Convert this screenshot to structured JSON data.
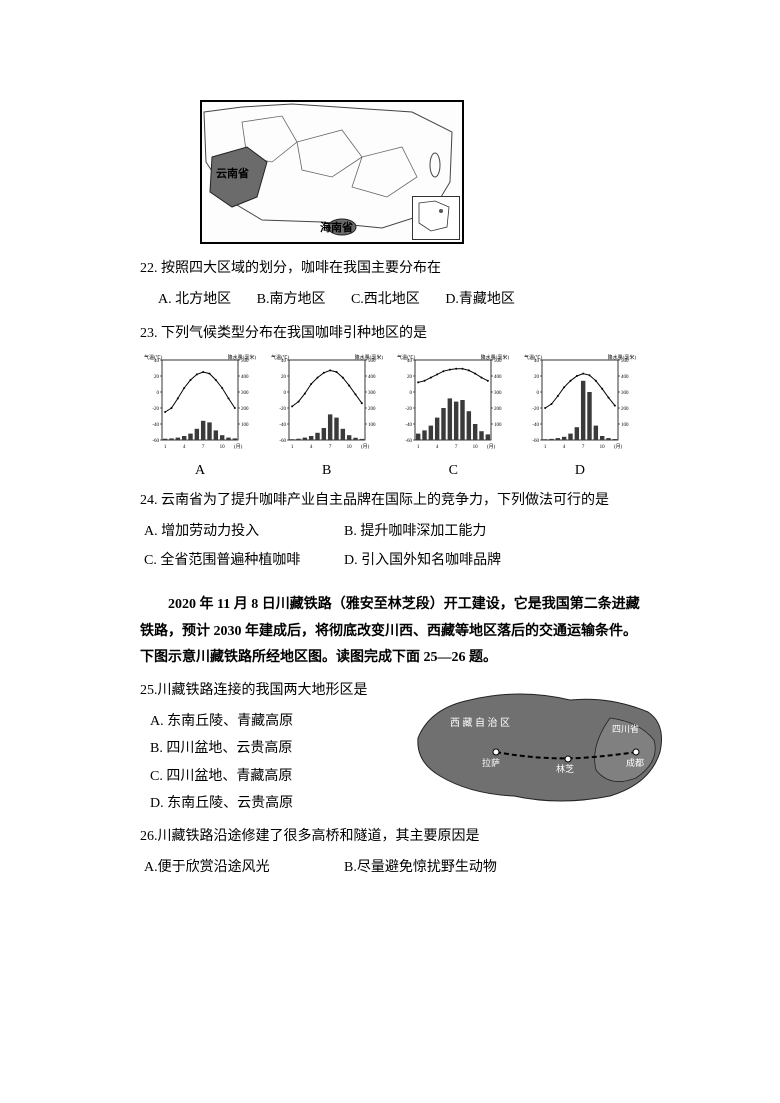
{
  "map1": {
    "labels": {
      "yunnan": "云南省",
      "hainan": "海南省"
    }
  },
  "q22": {
    "text": "22. 按照四大区域的划分，咖啡在我国主要分布在",
    "opts": {
      "a": "A.  北方地区",
      "b": "B.南方地区",
      "c": "C.西北地区",
      "d": "D.青藏地区"
    }
  },
  "q23": {
    "text": "23. 下列气候类型分布在我国咖啡引种地区的是",
    "charts": {
      "y_left_label": "气温(℃)",
      "y_right_label": "降水量(毫米)",
      "x_label": "(月)",
      "left_ticks": [
        40,
        20,
        0,
        -20,
        -40,
        -60
      ],
      "right_ticks": [
        500,
        400,
        300,
        200,
        100
      ],
      "x_ticks": [
        1,
        4,
        7,
        10
      ],
      "letters": [
        "A",
        "B",
        "C",
        "D"
      ],
      "A": {
        "temp": [
          -25,
          -20,
          -8,
          5,
          15,
          22,
          25,
          23,
          15,
          5,
          -8,
          -20
        ],
        "precip": [
          8,
          10,
          15,
          25,
          40,
          70,
          120,
          110,
          60,
          30,
          15,
          10
        ]
      },
      "B": {
        "temp": [
          -18,
          -12,
          -2,
          10,
          18,
          24,
          27,
          25,
          18,
          8,
          -3,
          -14
        ],
        "precip": [
          5,
          8,
          15,
          25,
          45,
          75,
          160,
          140,
          70,
          30,
          14,
          7
        ]
      },
      "C": {
        "temp": [
          12,
          14,
          18,
          22,
          26,
          28,
          29,
          29,
          27,
          23,
          18,
          14
        ],
        "precip": [
          40,
          60,
          90,
          140,
          200,
          260,
          240,
          250,
          180,
          100,
          55,
          35
        ]
      },
      "D": {
        "temp": [
          -20,
          -15,
          -5,
          6,
          14,
          20,
          23,
          21,
          14,
          4,
          -7,
          -17
        ],
        "precip": [
          5,
          7,
          12,
          20,
          40,
          80,
          370,
          300,
          90,
          25,
          12,
          6
        ]
      }
    }
  },
  "q24": {
    "text": "24.  云南省为了提升咖啡产业自主品牌在国际上的竞争力，下列做法可行的是",
    "opts": {
      "a": "A. 增加劳动力投入",
      "b": "B. 提升咖啡深加工能力",
      "c": "C. 全省范围普遍种植咖啡",
      "d": "D. 引入国外知名咖啡品牌"
    }
  },
  "passage": "2020 年 11 月 8 日川藏铁路（雅安至林芝段）开工建设，它是我国第二条进藏铁路，预计 2030 年建成后，将彻底改变川西、西藏等地区落后的交通运输条件。下图示意川藏铁路所经地区图。读图完成下面 25—26 题。",
  "q25": {
    "text": "25.川藏铁路连接的我国两大地形区是",
    "opts": {
      "a": "A. 东南丘陵、青藏高原",
      "b": "B. 四川盆地、云贵高原",
      "c": "C. 四川盆地、青藏高原",
      "d": "D. 东南丘陵、云贵高原"
    }
  },
  "map2": {
    "labels": {
      "tibet": "西 藏 自 治 区",
      "lhasa": "拉萨",
      "linzhi": "林芝",
      "sichuan": "四川省",
      "chengdu": "成都"
    }
  },
  "q26": {
    "text": "26.川藏铁路沿途修建了很多高桥和隧道，其主要原因是",
    "opts": {
      "a": "A.便于欣赏沿途风光",
      "b": "B.尽量避免惊扰野生动物"
    }
  },
  "style": {
    "bar_color": "#3a3a3a",
    "line_color": "#000000",
    "axis_color": "#000000",
    "map_fill": "#7a7a7a",
    "map_stroke": "#222222"
  }
}
